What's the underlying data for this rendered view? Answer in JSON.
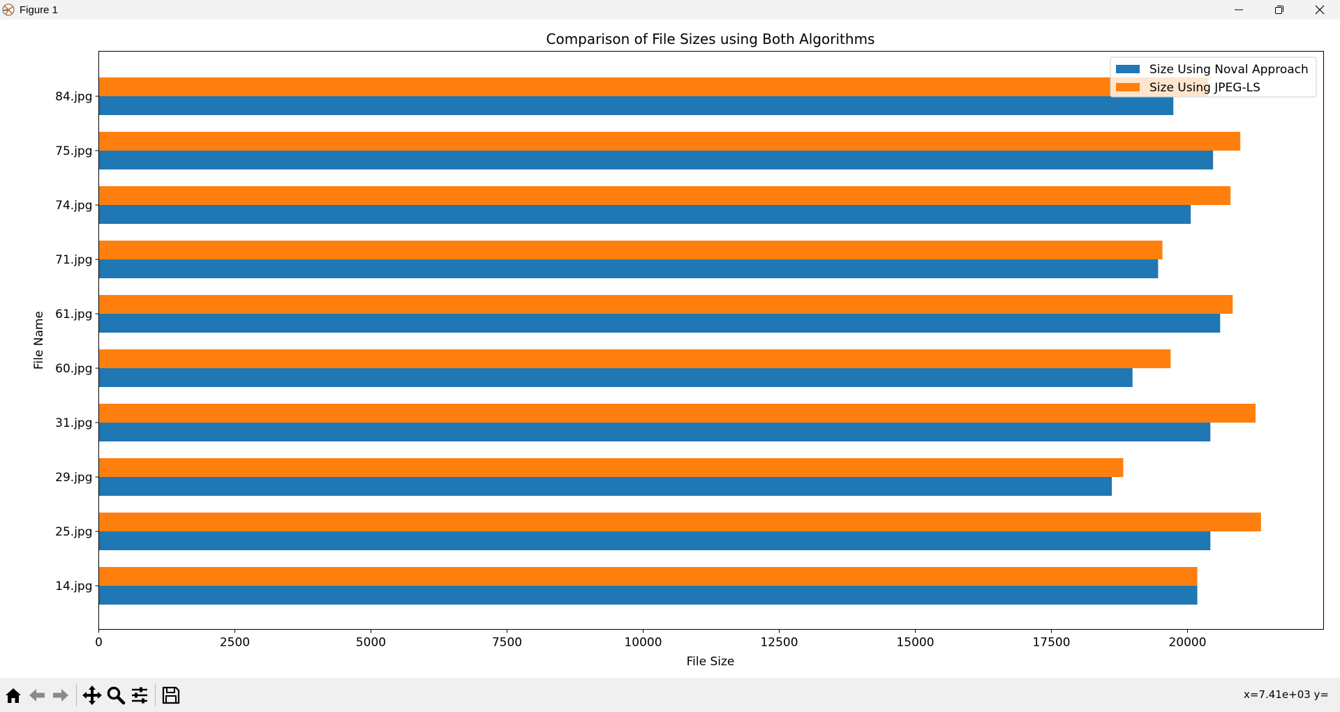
{
  "window": {
    "title": "Figure 1"
  },
  "toolbar": {
    "buttons": [
      {
        "name": "home-icon"
      },
      {
        "name": "back-arrow-icon"
      },
      {
        "name": "forward-arrow-icon"
      },
      {
        "name": "pan-move-icon"
      },
      {
        "name": "zoom-magnifier-icon"
      },
      {
        "name": "configure-subplots-icon"
      },
      {
        "name": "save-floppy-icon"
      }
    ],
    "coords_text": "x=7.41e+03 y="
  },
  "colors": {
    "series_blue": "#1f77b4",
    "series_orange": "#ff7f0e"
  },
  "chart_data": {
    "type": "bar",
    "orientation": "horizontal",
    "title": "Comparison of File Sizes using Both Algorithms",
    "xlabel": "File Size",
    "ylabel": "File Name",
    "xlim": [
      0,
      22500
    ],
    "xticks": [
      0,
      2500,
      5000,
      7500,
      10000,
      12500,
      15000,
      17500,
      20000
    ],
    "categories": [
      "14.jpg",
      "25.jpg",
      "29.jpg",
      "31.jpg",
      "60.jpg",
      "61.jpg",
      "71.jpg",
      "74.jpg",
      "75.jpg",
      "84.jpg"
    ],
    "series": [
      {
        "name": "Size Using Noval Approach",
        "color": "#1f77b4",
        "values": [
          20180,
          20420,
          18610,
          20420,
          18990,
          20600,
          19460,
          20060,
          20470,
          19740
        ]
      },
      {
        "name": "Size Using JPEG-LS",
        "color": "#ff7f0e",
        "values": [
          20180,
          21350,
          18820,
          21250,
          19690,
          20830,
          19540,
          20790,
          20970,
          20380
        ]
      }
    ],
    "legend_position": "top-right",
    "grid": false
  }
}
